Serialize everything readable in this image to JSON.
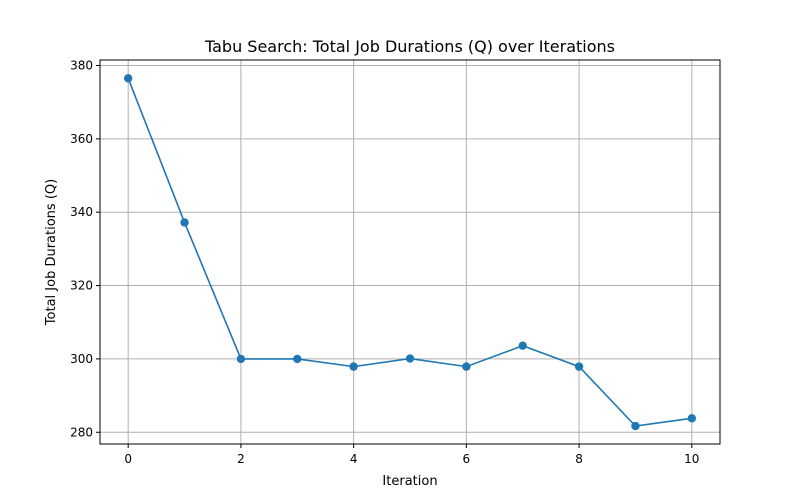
{
  "chart_data": {
    "type": "line",
    "title": "Tabu Search: Total Job Durations (Q) over Iterations",
    "xlabel": "Iteration",
    "ylabel": "Total Job Durations (Q)",
    "x": [
      0,
      1,
      2,
      3,
      4,
      5,
      6,
      7,
      8,
      9,
      10
    ],
    "series": [
      {
        "values": [
          376.5,
          337.2,
          300.0,
          300.0,
          297.9,
          300.1,
          297.9,
          303.6,
          297.9,
          281.7,
          283.8
        ]
      }
    ],
    "xlim": [
      -0.5,
      10.5
    ],
    "ylim": [
      276.8,
      381.5
    ],
    "xticks": [
      0,
      2,
      4,
      6,
      8,
      10
    ],
    "xtick_labels": [
      "0",
      "2",
      "4",
      "6",
      "8",
      "10"
    ],
    "yticks": [
      280,
      300,
      320,
      340,
      360,
      380
    ],
    "ytick_labels": [
      "280",
      "300",
      "320",
      "340",
      "360",
      "380"
    ],
    "grid": true,
    "line_color": "#1f77b4",
    "grid_color": "#b0b0b0",
    "marker": "circle"
  }
}
